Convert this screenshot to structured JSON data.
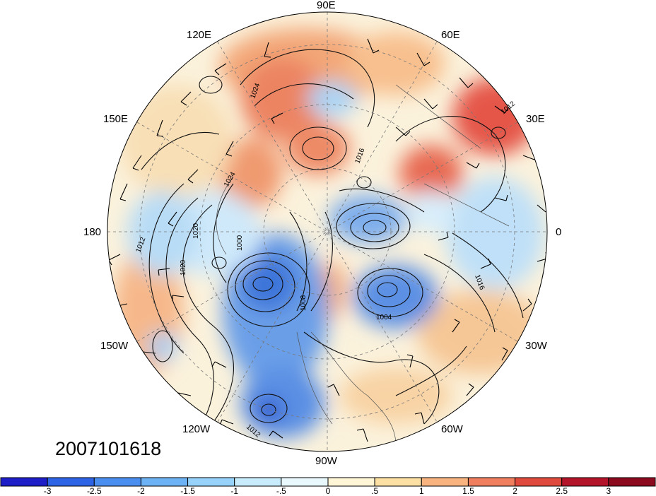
{
  "map": {
    "projection": "polar stereographic, north pole",
    "longitude_labels": [
      "90E",
      "60E",
      "30E",
      "0",
      "30W",
      "60W",
      "90W",
      "120W",
      "150W",
      "180",
      "150E",
      "120E"
    ],
    "contour_labels": [
      "1012",
      "1016",
      "1020",
      "1024",
      "1008",
      "1004",
      "1000",
      "1012",
      "1016",
      "1012",
      "1020",
      "1024"
    ]
  },
  "timestamp": "2007101618",
  "colorbar": {
    "tick_labels": [
      "-3",
      "-2.5",
      "-2",
      "-1.5",
      "-1",
      "-.5",
      "0",
      ".5",
      "1",
      "1.5",
      "2",
      "2.5",
      "3"
    ],
    "colors": [
      "#1e1ec8",
      "#2d64e6",
      "#4a8ff0",
      "#6cb2f5",
      "#96d2fa",
      "#c8ecfc",
      "#e9f8fd",
      "#fff6d8",
      "#fde0a4",
      "#f8b37e",
      "#ef7f5e",
      "#e04a3c",
      "#b4142a",
      "#8c0a1e"
    ]
  }
}
